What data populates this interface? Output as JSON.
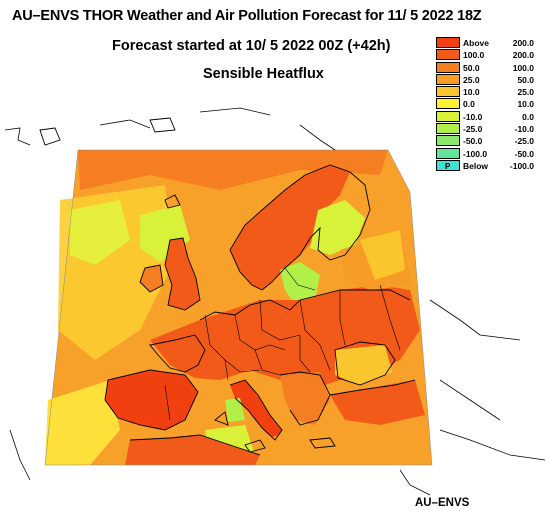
{
  "header": {
    "title": "AU–ENVS THOR Weather and Air Pollution Forecast for 11/ 5 2022  18Z",
    "subtitle": "Forecast started at 10/ 5 2022  00Z (+42h)",
    "field": "Sensible Heatflux"
  },
  "legend": {
    "entries": [
      {
        "lo": "Above",
        "hi": "200.0",
        "color": "#f04010"
      },
      {
        "lo": "100.0",
        "hi": "200.0",
        "color": "#f25a1a"
      },
      {
        "lo": "50.0",
        "hi": "100.0",
        "color": "#f57d22"
      },
      {
        "lo": "25.0",
        "hi": "50.0",
        "color": "#f89c28"
      },
      {
        "lo": "10.0",
        "hi": "25.0",
        "color": "#fbc52e"
      },
      {
        "lo": "0.0",
        "hi": "10.0",
        "color": "#fff233"
      },
      {
        "lo": "-10.0",
        "hi": "0.0",
        "color": "#d8f23a"
      },
      {
        "lo": "-25.0",
        "hi": "-10.0",
        "color": "#b2ef48"
      },
      {
        "lo": "-50.0",
        "hi": "-25.0",
        "color": "#8ae968"
      },
      {
        "lo": "-100.0",
        "hi": "-50.0",
        "color": "#62e49a"
      },
      {
        "lo": "Below",
        "hi": "-100.0",
        "color": "#3fe0d6",
        "marker": "P"
      }
    ]
  },
  "footer": {
    "credit": "AU–ENVS"
  }
}
